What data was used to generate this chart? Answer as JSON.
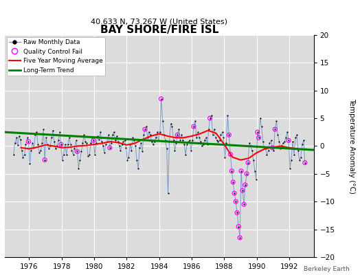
{
  "title": "BAY SHORE/FIRE ISL",
  "subtitle": "40.633 N, 73.267 W (United States)",
  "ylabel": "Temperature Anomaly (°C)",
  "watermark": "Berkeley Earth",
  "xlim": [
    1974.5,
    1993.5
  ],
  "ylim": [
    -20,
    20
  ],
  "xticks": [
    1976,
    1978,
    1980,
    1982,
    1984,
    1986,
    1988,
    1990,
    1992
  ],
  "yticks": [
    -20,
    -15,
    -10,
    -5,
    0,
    5,
    10,
    15,
    20
  ],
  "bg_color": "#dcdcdc",
  "grid_color": "white",
  "raw_line_color": "#7799cc",
  "raw_dot_color": "black",
  "qc_color": "#ff00ff",
  "moving_avg_color": "red",
  "trend_color": "green",
  "raw_x": [
    1975.04,
    1975.12,
    1975.21,
    1975.29,
    1975.38,
    1975.46,
    1975.54,
    1975.62,
    1975.71,
    1975.79,
    1975.88,
    1975.96,
    1976.04,
    1976.12,
    1976.21,
    1976.29,
    1976.38,
    1976.46,
    1976.54,
    1976.62,
    1976.71,
    1976.79,
    1976.88,
    1976.96,
    1977.04,
    1977.12,
    1977.21,
    1977.29,
    1977.38,
    1977.46,
    1977.54,
    1977.62,
    1977.71,
    1977.79,
    1977.88,
    1977.96,
    1978.04,
    1978.12,
    1978.21,
    1978.29,
    1978.38,
    1978.46,
    1978.54,
    1978.62,
    1978.71,
    1978.79,
    1978.88,
    1978.96,
    1979.04,
    1979.12,
    1979.21,
    1979.29,
    1979.38,
    1979.46,
    1979.54,
    1979.62,
    1979.71,
    1979.79,
    1979.88,
    1979.96,
    1980.04,
    1980.12,
    1980.21,
    1980.29,
    1980.38,
    1980.46,
    1980.54,
    1980.62,
    1980.71,
    1980.79,
    1980.88,
    1980.96,
    1981.04,
    1981.12,
    1981.21,
    1981.29,
    1981.38,
    1981.46,
    1981.54,
    1981.62,
    1981.71,
    1981.79,
    1981.88,
    1981.96,
    1982.04,
    1982.12,
    1982.21,
    1982.29,
    1982.38,
    1982.46,
    1982.54,
    1982.62,
    1982.71,
    1982.79,
    1982.88,
    1982.96,
    1983.04,
    1983.12,
    1983.21,
    1983.29,
    1983.38,
    1983.46,
    1983.54,
    1983.62,
    1983.71,
    1983.79,
    1983.88,
    1983.96,
    1984.04,
    1984.12,
    1984.21,
    1984.29,
    1984.38,
    1984.46,
    1984.54,
    1984.62,
    1984.71,
    1984.79,
    1984.88,
    1984.96,
    1985.04,
    1985.12,
    1985.21,
    1985.29,
    1985.38,
    1985.46,
    1985.54,
    1985.62,
    1985.71,
    1985.79,
    1985.88,
    1985.96,
    1986.04,
    1986.12,
    1986.21,
    1986.29,
    1986.38,
    1986.46,
    1986.54,
    1986.62,
    1986.71,
    1986.79,
    1986.88,
    1986.96,
    1987.04,
    1987.12,
    1987.21,
    1987.29,
    1987.38,
    1987.46,
    1987.54,
    1987.62,
    1987.71,
    1987.79,
    1987.88,
    1987.96,
    1988.04,
    1988.12,
    1988.21,
    1988.29,
    1988.38,
    1988.46,
    1988.54,
    1988.62,
    1988.71,
    1988.79,
    1988.88,
    1988.96,
    1989.04,
    1989.12,
    1989.21,
    1989.29,
    1989.38,
    1989.46,
    1989.54,
    1989.62,
    1989.71,
    1989.79,
    1989.88,
    1989.96,
    1990.04,
    1990.12,
    1990.21,
    1990.29,
    1990.38,
    1990.46,
    1990.54,
    1990.62,
    1990.71,
    1990.79,
    1990.88,
    1990.96,
    1991.04,
    1991.12,
    1991.21,
    1991.29,
    1991.38,
    1991.46,
    1991.54,
    1991.62,
    1991.71,
    1991.79,
    1991.88,
    1991.96,
    1992.04,
    1992.12,
    1992.21,
    1992.29,
    1992.38,
    1992.46,
    1992.54,
    1992.62,
    1992.71,
    1992.79,
    1992.88,
    1992.96
  ],
  "raw_y": [
    -1.5,
    0.5,
    1.5,
    0.2,
    1.8,
    1.2,
    -0.8,
    -2.0,
    -1.5,
    0.3,
    1.5,
    0.8,
    -3.2,
    -0.8,
    0.5,
    -0.3,
    2.0,
    2.5,
    0.3,
    -1.2,
    -0.8,
    0.5,
    3.0,
    -2.5,
    1.5,
    0.3,
    -0.5,
    0.0,
    1.5,
    2.8,
    0.8,
    -0.5,
    0.0,
    1.0,
    2.5,
    0.3,
    -2.5,
    -1.5,
    0.3,
    -1.5,
    0.3,
    1.5,
    0.3,
    -0.8,
    -1.5,
    -0.5,
    1.0,
    -1.0,
    -4.0,
    -2.5,
    -1.0,
    0.5,
    2.0,
    0.8,
    0.5,
    -1.8,
    -1.5,
    0.5,
    1.5,
    1.0,
    -1.5,
    0.5,
    1.8,
    1.2,
    2.5,
    0.8,
    0.0,
    -1.2,
    0.3,
    0.8,
    2.0,
    -0.3,
    0.5,
    2.0,
    2.5,
    1.0,
    1.8,
    0.8,
    0.0,
    -0.8,
    0.3,
    0.8,
    1.0,
    -0.3,
    -2.5,
    -2.0,
    0.3,
    -0.8,
    1.5,
    1.0,
    0.0,
    -2.5,
    -4.0,
    -0.3,
    0.5,
    -1.0,
    2.0,
    3.0,
    3.5,
    1.5,
    2.5,
    2.0,
    0.8,
    0.3,
    0.8,
    1.5,
    2.5,
    1.0,
    2.5,
    8.5,
    4.5,
    2.0,
    1.0,
    -0.5,
    -8.5,
    0.8,
    4.0,
    3.5,
    1.0,
    -0.8,
    0.5,
    2.0,
    3.0,
    1.0,
    2.0,
    1.0,
    0.3,
    -1.5,
    0.3,
    0.8,
    1.0,
    -0.8,
    1.0,
    3.5,
    4.5,
    1.5,
    2.5,
    1.5,
    0.8,
    0.0,
    0.3,
    1.0,
    1.5,
    0.3,
    3.0,
    5.0,
    5.5,
    2.0,
    3.0,
    1.5,
    1.0,
    0.8,
    1.0,
    2.0,
    2.5,
    1.5,
    -2.0,
    0.5,
    5.5,
    2.0,
    -1.5,
    -4.5,
    -6.5,
    -8.5,
    -10.0,
    -12.0,
    -14.5,
    -16.5,
    -4.5,
    -8.0,
    -10.5,
    -7.0,
    -5.0,
    -3.0,
    0.5,
    0.0,
    -0.8,
    -2.5,
    -4.5,
    -6.0,
    2.5,
    1.5,
    5.0,
    3.5,
    0.8,
    -0.5,
    -0.5,
    -1.5,
    -0.8,
    0.5,
    1.0,
    -0.3,
    -0.8,
    3.0,
    4.5,
    2.0,
    0.8,
    -0.5,
    0.0,
    0.5,
    0.8,
    1.5,
    2.5,
    1.0,
    -4.0,
    -2.5,
    0.8,
    -1.5,
    1.5,
    2.0,
    -0.8,
    -2.5,
    -2.0,
    0.3,
    1.0,
    -3.0
  ],
  "qc_fail_x": [
    1975.96,
    1976.96,
    1977.96,
    1978.96,
    1979.96,
    1980.96,
    1983.12,
    1984.12,
    1985.12,
    1986.12,
    1987.12,
    1988.29,
    1988.38,
    1988.46,
    1988.54,
    1988.62,
    1988.71,
    1988.79,
    1988.88,
    1988.96,
    1989.04,
    1989.12,
    1989.21,
    1989.29,
    1989.38,
    1989.46,
    1990.04,
    1990.12,
    1990.96,
    1991.12,
    1991.96,
    1992.96
  ],
  "qc_fail_y": [
    0.8,
    -2.5,
    0.3,
    -1.0,
    1.0,
    -0.3,
    3.0,
    8.5,
    2.0,
    3.5,
    5.0,
    2.0,
    -1.5,
    -4.5,
    -6.5,
    -8.5,
    -10.0,
    -12.0,
    -14.5,
    -16.5,
    -4.5,
    -8.0,
    -10.5,
    -7.0,
    -5.0,
    -3.0,
    2.5,
    1.5,
    -0.3,
    3.0,
    1.0,
    -3.0
  ],
  "moving_avg_x": [
    1975.5,
    1976.0,
    1976.5,
    1977.0,
    1977.5,
    1978.0,
    1978.5,
    1979.0,
    1979.5,
    1980.0,
    1980.5,
    1981.0,
    1981.5,
    1982.0,
    1982.5,
    1983.0,
    1983.5,
    1984.0,
    1984.5,
    1985.0,
    1985.5,
    1986.0,
    1986.5,
    1987.0,
    1987.5,
    1988.0,
    1988.5,
    1989.0,
    1989.5,
    1990.0,
    1990.5,
    1991.0,
    1991.5,
    1992.0,
    1992.5
  ],
  "moving_avg_y": [
    -0.3,
    -0.5,
    -0.2,
    0.2,
    0.0,
    -0.3,
    -0.2,
    0.0,
    0.1,
    0.3,
    0.5,
    0.8,
    0.6,
    0.2,
    0.5,
    1.2,
    1.8,
    2.2,
    1.8,
    1.5,
    1.5,
    1.8,
    2.2,
    2.8,
    2.3,
    0.3,
    -2.0,
    -2.5,
    -2.2,
    -1.2,
    -0.5,
    -0.2,
    0.0,
    -0.3,
    -0.5
  ],
  "trend_x": [
    1974.5,
    1993.5
  ],
  "trend_y": [
    2.5,
    -0.7
  ]
}
